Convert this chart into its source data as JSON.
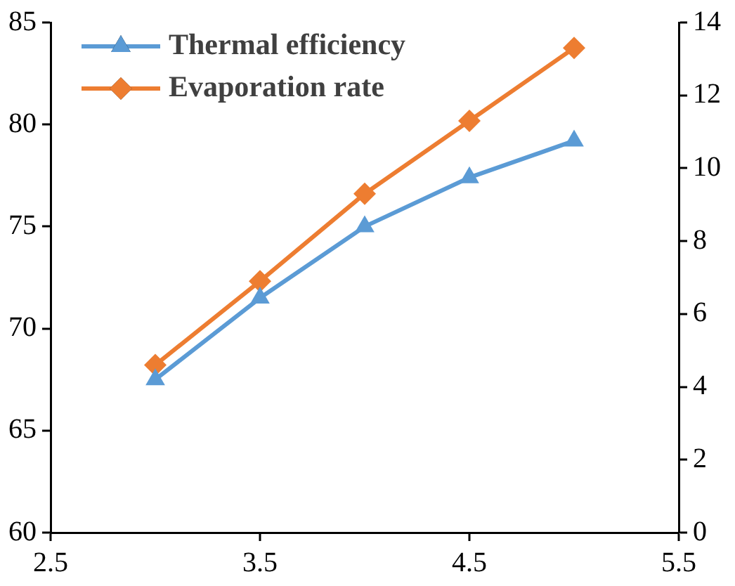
{
  "chart_data": {
    "type": "line",
    "x": [
      3.0,
      3.5,
      4.0,
      4.5,
      5.0
    ],
    "series": [
      {
        "name": "Thermal efficiency",
        "color": "#5b9bd5",
        "marker": "triangle",
        "values": [
          67.5,
          71.5,
          75.0,
          77.4,
          79.2
        ]
      },
      {
        "name": "Evaporation rate",
        "color": "#ed7d31",
        "marker": "diamond",
        "axis": "y2",
        "values": [
          4.6,
          6.9,
          9.3,
          11.3,
          13.3
        ]
      }
    ],
    "xlim": [
      2.5,
      5.5
    ],
    "xticks": [
      2.5,
      3.5,
      4.5,
      5.5
    ],
    "ylim": [
      60,
      85
    ],
    "yticks": [
      60,
      65,
      70,
      75,
      80,
      85
    ],
    "y2lim": [
      0,
      14
    ],
    "y2ticks": [
      0,
      2,
      4,
      6,
      8,
      10,
      12,
      14
    ],
    "legend": "top left",
    "grid": false
  }
}
